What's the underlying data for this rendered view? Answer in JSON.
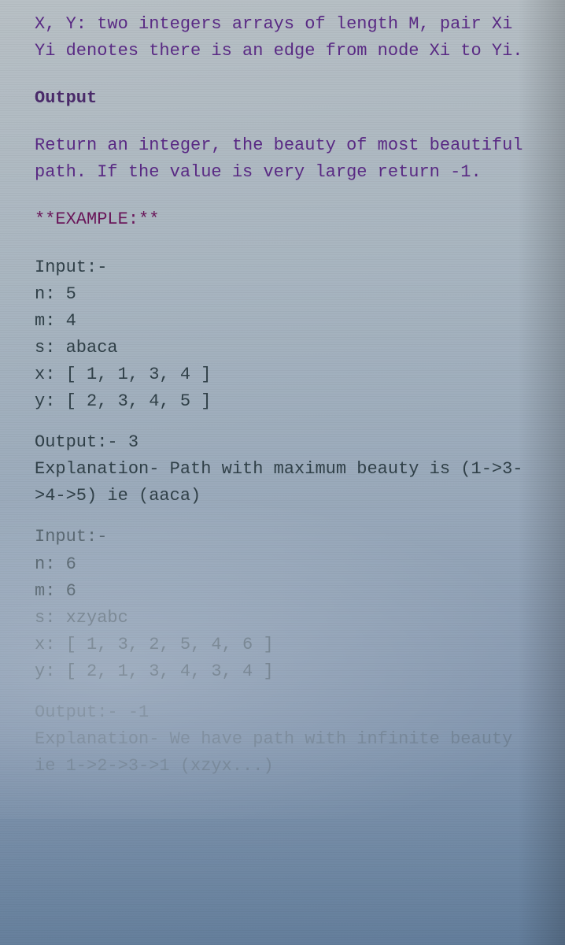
{
  "intro": {
    "l1_a": "X, Y: two integers arrays of length M, pair Xi ",
    "l2_a": "Yi denotes there is an edge from node Xi to Yi."
  },
  "output_hdr": "Output",
  "output_body": {
    "l1": "Return an integer, the beauty of most beautiful",
    "l2": "path. If the value is very large return -1."
  },
  "example_hdr": "**EXAMPLE:**",
  "ex1": {
    "in_hdr": "Input:-",
    "n": "n: 5",
    "m": "m: 4",
    "s": "s: abaca",
    "x": "x: [ 1, 1, 3, 4 ]",
    "y": "y: [ 2, 3, 4, 5 ]",
    "out_hdr": "Output:- 3",
    "exp_l1": "Explanation- Path with maximum beauty is (1->3-",
    "exp_l2": ">4->5) ie (aaca)"
  },
  "ex2": {
    "in_hdr": "Input:-",
    "n": "n: 6",
    "m": "m: 6",
    "s": "s: xzyabc",
    "x": "x: [ 1, 3, 2, 5, 4, 6 ]",
    "y": "y: [ 2, 1, 3, 4, 3, 4 ]",
    "out_hdr": "Output:- -1",
    "exp_l1": "Explanation- We have path with infinite beauty",
    "exp_l2": "ie 1->2->3->1 (xzyx...)"
  }
}
